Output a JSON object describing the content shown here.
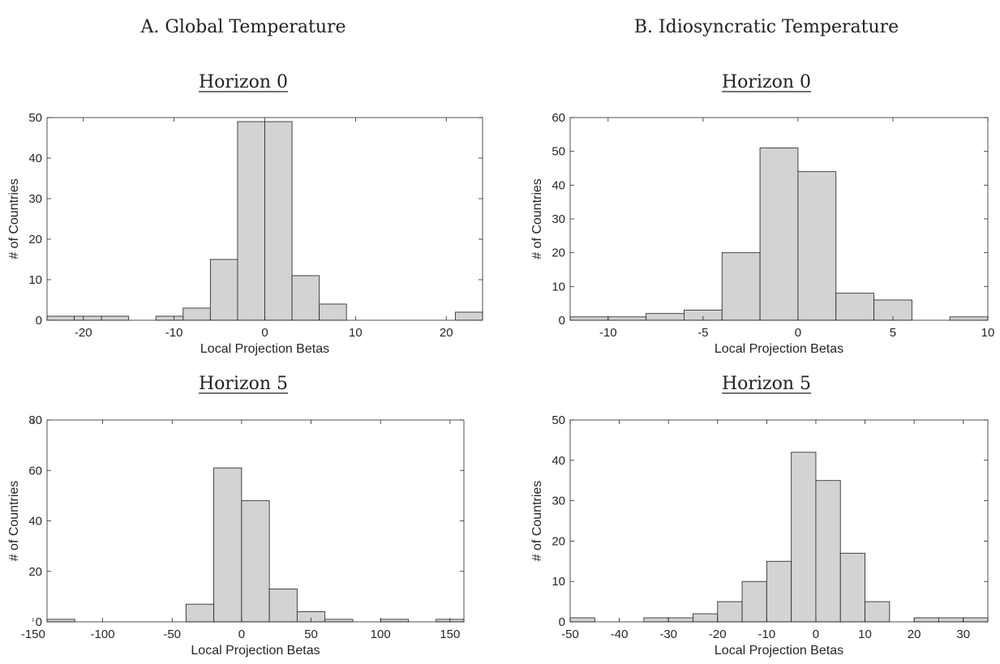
{
  "columns": [
    {
      "title": "A. Global Temperature"
    },
    {
      "title": "B. Idiosyncratic Temperature"
    }
  ],
  "colors": {
    "bar_fill": "#d3d3d3",
    "bar_stroke": "#333333",
    "axis": "#262626"
  },
  "chart_data": [
    {
      "type": "bar",
      "title": "Horizon 0",
      "xlabel": "Local Projection Betas",
      "ylabel": "# of Countries",
      "xlim": [
        -24,
        24
      ],
      "ylim": [
        0,
        50
      ],
      "xticks": [
        -20,
        -10,
        0,
        10,
        20
      ],
      "yticks": [
        0,
        10,
        20,
        30,
        40,
        50
      ],
      "bin_edges": [
        -24,
        -21,
        -18,
        -15,
        -12,
        -9,
        -6,
        -3,
        0,
        3,
        6,
        9,
        12,
        15,
        18,
        21,
        24
      ],
      "values": [
        1,
        1,
        1,
        0,
        1,
        3,
        15,
        49,
        49,
        11,
        4,
        0,
        0,
        0,
        0,
        2
      ],
      "grid": false
    },
    {
      "type": "bar",
      "title": "Horizon 0",
      "xlabel": "Local Projection Betas",
      "ylabel": "# of Countries",
      "xlim": [
        -12,
        10
      ],
      "ylim": [
        0,
        60
      ],
      "xticks": [
        -10,
        -5,
        0,
        5,
        10
      ],
      "yticks": [
        0,
        10,
        20,
        30,
        40,
        50,
        60
      ],
      "bin_edges": [
        -12,
        -10,
        -8,
        -6,
        -4,
        -2,
        0,
        2,
        4,
        6,
        8,
        10
      ],
      "values": [
        1,
        1,
        2,
        3,
        20,
        51,
        44,
        8,
        6,
        0,
        1
      ],
      "grid": false
    },
    {
      "type": "bar",
      "title": "Horizon 5",
      "xlabel": "Local Projection Betas",
      "ylabel": "# of Countries",
      "xlim": [
        -140,
        160
      ],
      "ylim": [
        0,
        80
      ],
      "xticks": [
        -150,
        -100,
        -50,
        0,
        50,
        100,
        150
      ],
      "yticks": [
        0,
        20,
        40,
        60,
        80
      ],
      "bin_edges": [
        -140,
        -120,
        -100,
        -80,
        -60,
        -40,
        -20,
        0,
        20,
        40,
        60,
        80,
        100,
        120,
        140,
        160
      ],
      "values": [
        1,
        0,
        0,
        0,
        0,
        7,
        61,
        48,
        13,
        4,
        1,
        0,
        1,
        0,
        1
      ],
      "grid": false
    },
    {
      "type": "bar",
      "title": "Horizon 5",
      "xlabel": "Local Projection Betas",
      "ylabel": "# of Countries",
      "xlim": [
        -50,
        35
      ],
      "ylim": [
        0,
        50
      ],
      "xticks": [
        -50,
        -40,
        -30,
        -20,
        -10,
        0,
        10,
        20,
        30
      ],
      "yticks": [
        0,
        10,
        20,
        30,
        40,
        50
      ],
      "bin_edges": [
        -50,
        -45,
        -40,
        -35,
        -30,
        -25,
        -20,
        -15,
        -10,
        -5,
        0,
        5,
        10,
        15,
        20,
        25,
        30,
        35
      ],
      "values": [
        1,
        0,
        0,
        1,
        1,
        2,
        5,
        10,
        15,
        42,
        35,
        17,
        5,
        0,
        1,
        1,
        1
      ],
      "grid": false
    }
  ]
}
